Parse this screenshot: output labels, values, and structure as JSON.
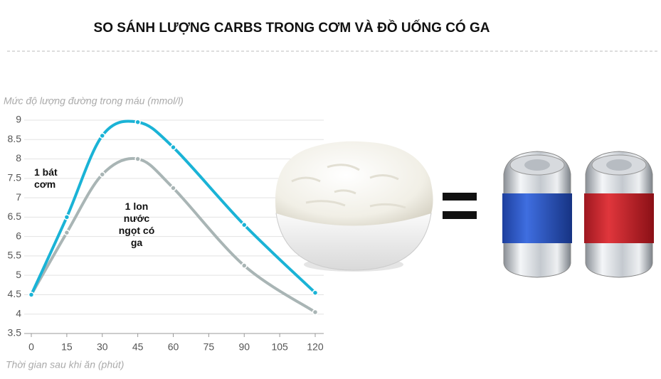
{
  "chart_data": {
    "type": "line",
    "title": "SO SÁNH LƯỢNG CARBS TRONG CƠM VÀ ĐỒ UỐNG CÓ GA",
    "ylabel": "Mức độ lượng đường trong máu (mmol/l)",
    "xlabel": "Thời gian sau khi ăn (phút)",
    "x": [
      0,
      15,
      30,
      45,
      60,
      90,
      120
    ],
    "xlim": [
      0,
      120
    ],
    "xticks": [
      0,
      15,
      30,
      45,
      60,
      75,
      90,
      105,
      120
    ],
    "ylim": [
      3.5,
      9
    ],
    "yticks": [
      3.5,
      4,
      4.5,
      5,
      5.5,
      6,
      6.5,
      7,
      7.5,
      8,
      8.5,
      9
    ],
    "grid": true,
    "series": [
      {
        "name": "1 bát cơm",
        "color": "#1ab3d6",
        "values": [
          4.5,
          6.5,
          8.6,
          8.95,
          8.3,
          6.3,
          4.55
        ]
      },
      {
        "name": "1 lon nước ngọt có ga",
        "color": "#a9b5b5",
        "values": [
          4.5,
          6.1,
          7.6,
          8.0,
          7.25,
          5.25,
          4.05
        ]
      }
    ]
  }
}
